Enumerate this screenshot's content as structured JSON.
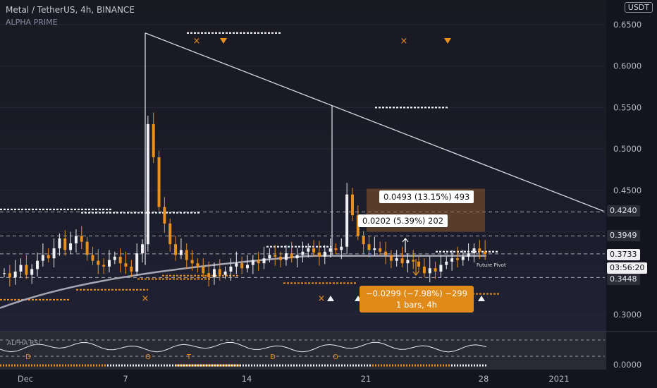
{
  "header": {
    "title": "Metal / TetherUS, 4h, BINANCE",
    "indicator": "ALPHA PRIME",
    "currency": "USDT"
  },
  "chart_data": {
    "type": "candlestick",
    "y_axis": {
      "ticks": [
        "0.6500",
        "0.6000",
        "0.5500",
        "0.5000",
        "0.4500",
        "0.3000"
      ],
      "range": [
        0.27,
        0.66
      ]
    },
    "x_axis": {
      "ticks": [
        "Dec",
        "7",
        "14",
        "21",
        "28",
        "2021"
      ]
    },
    "price_badges": [
      {
        "label": "0.4240",
        "style": "dark"
      },
      {
        "label": "0.3949",
        "style": "dark"
      },
      {
        "label": "0.3733",
        "style": "white"
      },
      {
        "label": "03:56:20",
        "style": "white"
      },
      {
        "label": "0.3448",
        "style": "dark"
      }
    ],
    "trendline": {
      "from": [
        8.2,
        0.64
      ],
      "to": [
        34.0,
        0.425
      ]
    },
    "measure_tools": [
      {
        "text": "0.0493 (13.15%) 493"
      },
      {
        "text": "0.0202 (5.39%) 202"
      },
      {
        "text": "−0.0299 (−7.98%) −299",
        "sub": "1 bars, 4h"
      }
    ],
    "annotations": {
      "future_pivot": "Future Pivot"
    },
    "rsi_panel": {
      "label": "ALPHA RSI",
      "axis_tick": "0.0000",
      "letters": [
        "D",
        "O",
        "T",
        "D",
        "O"
      ]
    },
    "series": [
      {
        "values": [
          0.35,
          0.345,
          0.352,
          0.36,
          0.348,
          0.355,
          0.365,
          0.372,
          0.368,
          0.38,
          0.392,
          0.378,
          0.386,
          0.395,
          0.388,
          0.372,
          0.365,
          0.36,
          0.358,
          0.366,
          0.37,
          0.362,
          0.358,
          0.352,
          0.374,
          0.385,
          0.53,
          0.49,
          0.43,
          0.41,
          0.385,
          0.372,
          0.378,
          0.366,
          0.362,
          0.358,
          0.35,
          0.345,
          0.355,
          0.348,
          0.352,
          0.358,
          0.362,
          0.356,
          0.36,
          0.366,
          0.362,
          0.368,
          0.372,
          0.37,
          0.366,
          0.374,
          0.368,
          0.372,
          0.376,
          0.38,
          0.375,
          0.37,
          0.376,
          0.38,
          0.378,
          0.382,
          0.445,
          0.42,
          0.395,
          0.385,
          0.378,
          0.38,
          0.376,
          0.372,
          0.365,
          0.368,
          0.362,
          0.366,
          0.364,
          0.358,
          0.35,
          0.356,
          0.352,
          0.36,
          0.364,
          0.368,
          0.366,
          0.37,
          0.374,
          0.38,
          0.376,
          0.373
        ]
      }
    ]
  }
}
